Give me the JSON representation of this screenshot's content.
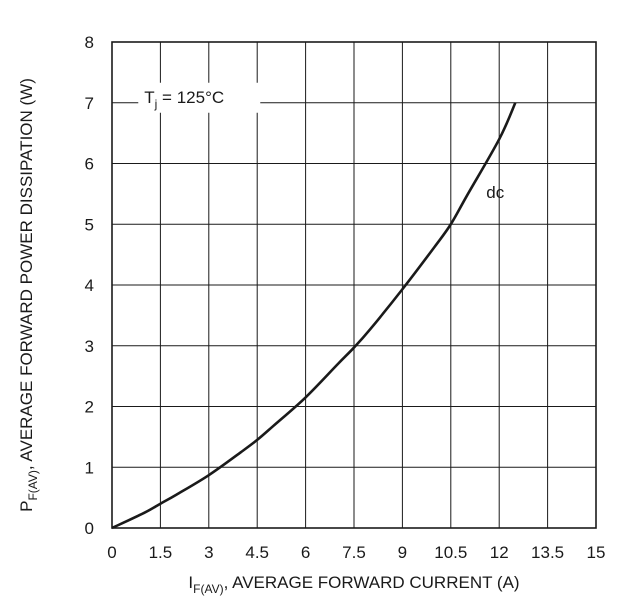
{
  "chart_data": {
    "type": "line",
    "xlabel": {
      "prefix": "I",
      "subscript": "F(AV)",
      "suffix": ", AVERAGE FORWARD CURRENT (A)"
    },
    "ylabel": {
      "prefix": "P",
      "subscript": "F(AV)",
      "suffix": ", AVERAGE FORWARD POWER DISSIPATION (W)"
    },
    "xlim": [
      0,
      15
    ],
    "ylim": [
      0,
      8
    ],
    "x_ticks": [
      0,
      1.5,
      3,
      4.5,
      6,
      7.5,
      9,
      10.5,
      12,
      13.5,
      15
    ],
    "y_ticks": [
      0,
      1,
      2,
      3,
      4,
      5,
      6,
      7,
      8
    ],
    "grid": true,
    "series": [
      {
        "name": "dc",
        "x": [
          0,
          1,
          1.5,
          2,
          3,
          4,
          4.5,
          5,
          6,
          7,
          7.5,
          8,
          9,
          10,
          10.5,
          11,
          12,
          12.5
        ],
        "y": [
          0,
          0.25,
          0.4,
          0.55,
          0.87,
          1.25,
          1.45,
          1.68,
          2.15,
          2.7,
          2.97,
          3.27,
          3.93,
          4.63,
          5.0,
          5.47,
          6.4,
          7.0
        ]
      }
    ],
    "annotations": [
      {
        "prefix": "T",
        "subscript": "j",
        "suffix": " = 125°C",
        "x": 1.0,
        "y": 7.0
      }
    ],
    "colors": {
      "line": "#1a1a1a",
      "grid": "#1a1a1a",
      "background": "#ffffff"
    }
  }
}
